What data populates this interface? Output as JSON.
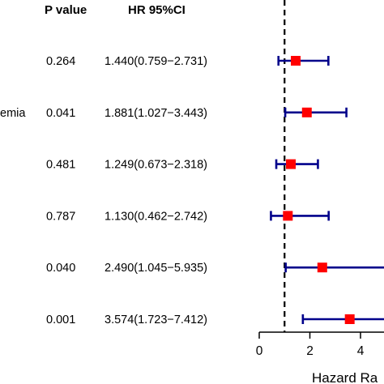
{
  "header": {
    "pvalue_label": "P value",
    "hr_label": "HR 95%CI"
  },
  "chart_data": {
    "type": "forest",
    "xlabel": "Hazard Ra",
    "xlim": [
      0,
      5
    ],
    "reference_line": 1,
    "x_ticks": [
      0,
      2,
      4
    ],
    "marker_color": "#ff0000",
    "ci_color": "#00008b",
    "rows": [
      {
        "label": "",
        "pvalue": "0.264",
        "hr_text": "1.440(0.759−2.731)",
        "hr": 1.44,
        "lower": 0.759,
        "upper": 2.731
      },
      {
        "label": "emia",
        "pvalue": "0.041",
        "hr_text": "1.881(1.027−3.443)",
        "hr": 1.881,
        "lower": 1.027,
        "upper": 3.443
      },
      {
        "label": "",
        "pvalue": "0.481",
        "hr_text": "1.249(0.673−2.318)",
        "hr": 1.249,
        "lower": 0.673,
        "upper": 2.318
      },
      {
        "label": "",
        "pvalue": "0.787",
        "hr_text": "1.130(0.462−2.742)",
        "hr": 1.13,
        "lower": 0.462,
        "upper": 2.742
      },
      {
        "label": "",
        "pvalue": "0.040",
        "hr_text": "2.490(1.045−5.935)",
        "hr": 2.49,
        "lower": 1.045,
        "upper": 5.935
      },
      {
        "label": "",
        "pvalue": "0.001",
        "hr_text": "3.574(1.723−7.412)",
        "hr": 3.574,
        "lower": 1.723,
        "upper": 7.412
      }
    ]
  }
}
